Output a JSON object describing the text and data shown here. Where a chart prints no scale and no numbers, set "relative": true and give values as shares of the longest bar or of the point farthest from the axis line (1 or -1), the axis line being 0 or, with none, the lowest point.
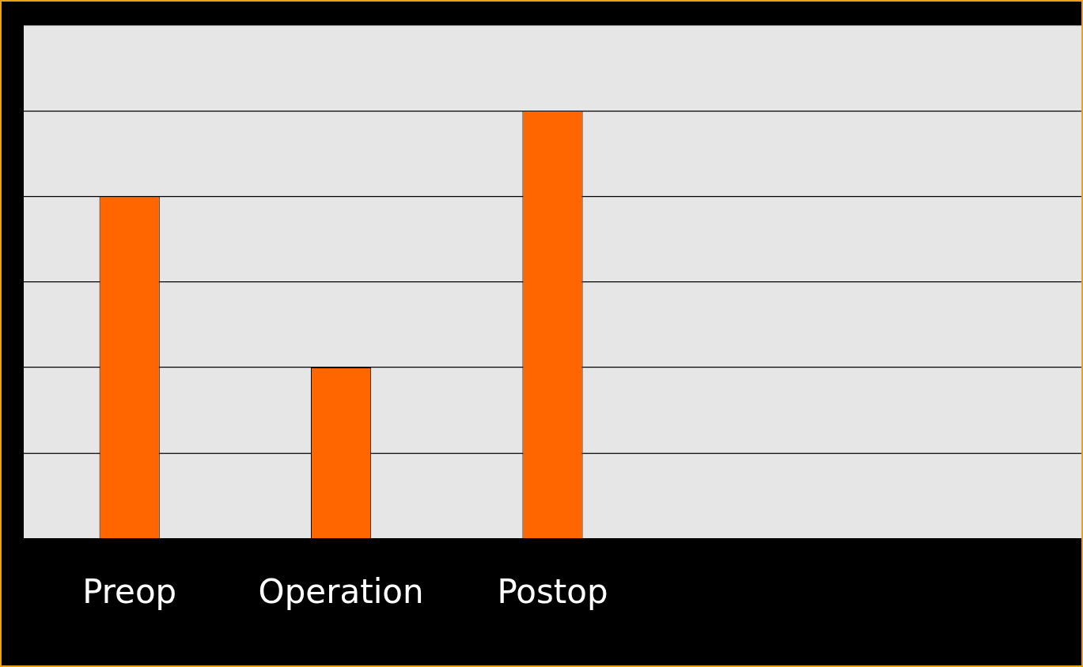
{
  "chart_data": {
    "type": "bar",
    "relative": true,
    "categories": [
      "Preop",
      "Operation",
      "Postop",
      null,
      null
    ],
    "values": [
      0.8,
      0.4,
      1,
      null,
      null
    ],
    "color": "#ff6600",
    "grid": "y",
    "legend": false
  }
}
